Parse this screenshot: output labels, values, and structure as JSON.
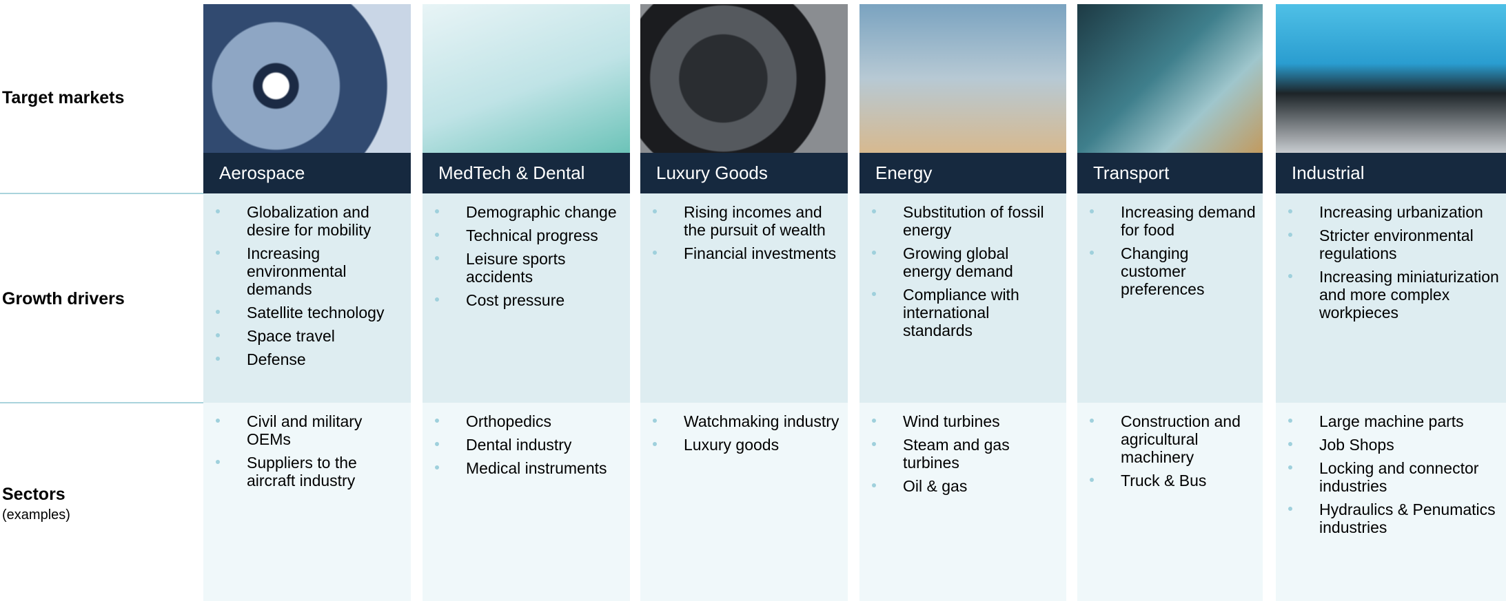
{
  "row_labels": {
    "target_markets": "Target markets",
    "growth_drivers": "Growth drivers",
    "sectors": "Sectors",
    "sectors_note": "(examples)"
  },
  "columns": [
    {
      "title": "Aerospace",
      "drivers": [
        "Globalization and desire for mobility",
        "Increasing environmental demands",
        "Satellite technology",
        "Space travel",
        "Defense"
      ],
      "sectors": [
        "Civil and military OEMs",
        "Suppliers to the aircraft industry"
      ]
    },
    {
      "title": "MedTech & Dental",
      "drivers": [
        "Demographic change",
        "Technical progress",
        "Leisure sports accidents",
        "Cost pressure"
      ],
      "sectors": [
        "Orthopedics",
        "Dental industry",
        "Medical instruments"
      ]
    },
    {
      "title": "Luxury Goods",
      "drivers": [
        "Rising incomes and the pursuit of wealth",
        "Financial investments"
      ],
      "sectors": [
        "Watchmaking industry",
        "Luxury goods"
      ]
    },
    {
      "title": "Energy",
      "drivers": [
        "Substitution of fossil energy",
        "Growing global energy demand",
        "Compliance with international standards"
      ],
      "sectors": [
        "Wind turbines",
        "Steam and gas turbines",
        "Oil & gas"
      ]
    },
    {
      "title": "Transport",
      "drivers": [
        "Increasing demand for food",
        "Changing customer preferences"
      ],
      "sectors": [
        "Construction and agricultural machinery",
        "Truck & Bus"
      ]
    },
    {
      "title": "Industrial",
      "drivers": [
        "Increasing urbanization",
        "Stricter environmental regulations",
        "Increasing miniaturization and more complex workpieces"
      ],
      "sectors": [
        "Large machine parts",
        "Job Shops",
        "Locking and connector industries",
        "Hydraulics & Penumatics industries"
      ]
    }
  ]
}
